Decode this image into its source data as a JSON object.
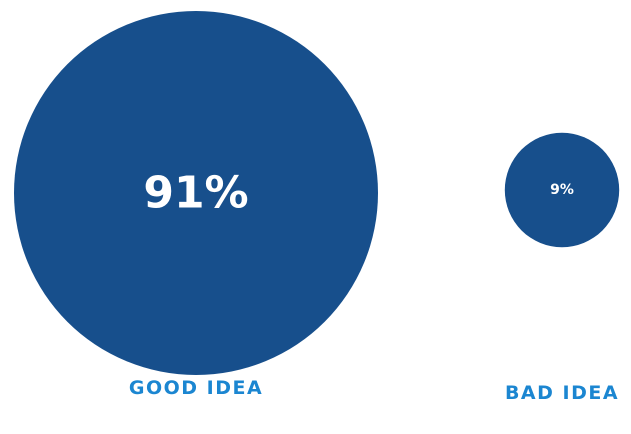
{
  "colors": {
    "bubble": "#174f8c",
    "value_text": "#ffffff",
    "category_text": "#1b86d1",
    "background": "#ffffff"
  },
  "chart_data": {
    "type": "bubble",
    "unit": "%",
    "categories": [
      "GOOD IDEA",
      "BAD IDEA"
    ],
    "values": [
      91,
      9
    ],
    "value_labels": [
      "91%",
      "9%"
    ],
    "legend": "none",
    "grid": false
  }
}
